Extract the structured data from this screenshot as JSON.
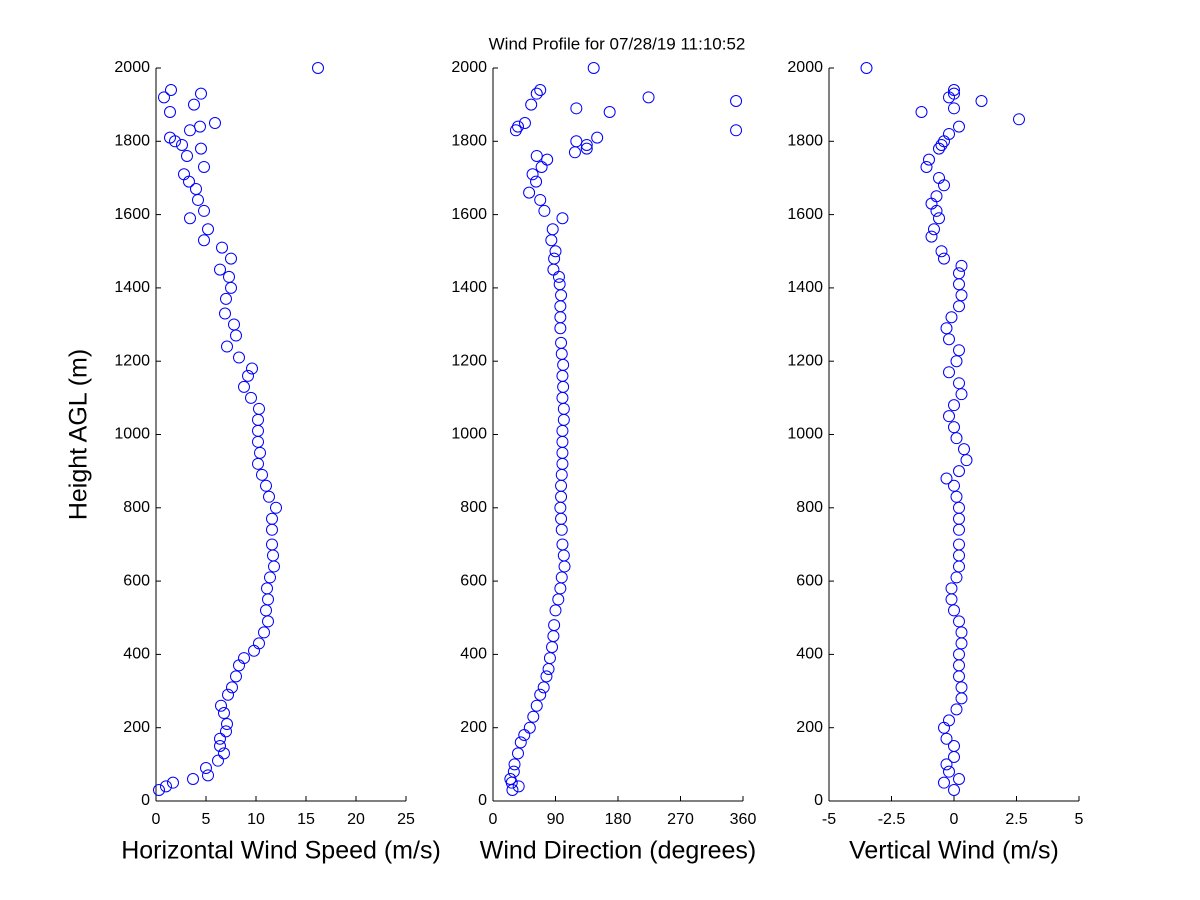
{
  "title": "Wind Profile for  07/28/19 11:10:52",
  "chart_data": [
    {
      "type": "scatter",
      "xlabel": "Horizontal Wind Speed (m/s)",
      "ylabel": "Height AGL (m)",
      "color": "#0000ff",
      "xlim": [
        0,
        25
      ],
      "xticks": [
        0,
        5,
        10,
        15,
        20,
        25
      ],
      "ylim": [
        0,
        2000
      ],
      "yticks": [
        0,
        200,
        400,
        600,
        800,
        1000,
        1200,
        1400,
        1600,
        1800,
        2000
      ],
      "x": [
        0.3,
        1,
        1.7,
        3.7,
        5.2,
        5,
        6.2,
        6.8,
        6.4,
        6.4,
        7,
        7.1,
        6.8,
        6.5,
        7.2,
        7.6,
        8,
        8.3,
        8.8,
        9.8,
        10.3,
        10.8,
        11.2,
        11,
        11.2,
        11.1,
        11.4,
        11.8,
        11.7,
        11.6,
        11.6,
        11.6,
        12,
        11.3,
        11,
        10.6,
        10.2,
        10.4,
        10.2,
        10.2,
        10.2,
        10.3,
        9.5,
        8.8,
        9.2,
        9.6,
        8.3,
        7.1,
        8,
        7.8,
        6.9,
        7,
        7.5,
        7.3,
        6.4,
        7.5,
        6.6,
        4.8,
        5.2,
        3.4,
        4.8,
        4.2,
        4,
        3.3,
        2.8,
        4.8,
        3.1,
        4.5,
        2.6,
        1.9,
        1.4,
        3.4,
        4.4,
        5.9,
        1.4,
        3.8,
        0.8,
        4.5,
        1.5,
        16.2
      ],
      "y": [
        30,
        40,
        50,
        60,
        70,
        90,
        110,
        130,
        150,
        170,
        190,
        210,
        240,
        260,
        290,
        310,
        340,
        370,
        390,
        410,
        430,
        460,
        490,
        520,
        550,
        580,
        610,
        640,
        670,
        700,
        740,
        770,
        800,
        830,
        860,
        890,
        920,
        950,
        980,
        1010,
        1040,
        1070,
        1100,
        1130,
        1160,
        1180,
        1210,
        1240,
        1270,
        1300,
        1330,
        1370,
        1400,
        1430,
        1450,
        1480,
        1510,
        1530,
        1560,
        1590,
        1610,
        1640,
        1670,
        1690,
        1710,
        1730,
        1760,
        1780,
        1790,
        1800,
        1810,
        1830,
        1840,
        1850,
        1880,
        1900,
        1920,
        1930,
        1940,
        2000
      ]
    },
    {
      "type": "scatter",
      "xlabel": "Wind Direction (degrees)",
      "color": "#0000ff",
      "xlim": [
        0,
        360
      ],
      "xticks": [
        0,
        90,
        180,
        270,
        360
      ],
      "ylim": [
        0,
        2000
      ],
      "yticks": [
        0,
        200,
        400,
        600,
        800,
        1000,
        1200,
        1400,
        1600,
        1800,
        2000
      ],
      "x": [
        28,
        37,
        27,
        25,
        30,
        31,
        36,
        40,
        45,
        53,
        58,
        63,
        68,
        73,
        77,
        80,
        82,
        85,
        87,
        88,
        90,
        94,
        97,
        99,
        103,
        102,
        100,
        99,
        98,
        97,
        98,
        98,
        99,
        100,
        100,
        100,
        100,
        102,
        102,
        100,
        101,
        100,
        101,
        99,
        98,
        97,
        97,
        97,
        98,
        96,
        95,
        87,
        88,
        90,
        84,
        86,
        100,
        74,
        68,
        52,
        62,
        57,
        70,
        78,
        63,
        118,
        135,
        135,
        120,
        150,
        33,
        350,
        36,
        46,
        168,
        120,
        55,
        350,
        224,
        63,
        68,
        145
      ],
      "y": [
        30,
        40,
        50,
        60,
        80,
        100,
        130,
        160,
        180,
        200,
        230,
        260,
        290,
        310,
        340,
        360,
        390,
        420,
        450,
        480,
        520,
        550,
        580,
        610,
        640,
        670,
        700,
        740,
        770,
        800,
        830,
        860,
        890,
        920,
        950,
        980,
        1010,
        1040,
        1070,
        1100,
        1130,
        1160,
        1190,
        1220,
        1250,
        1290,
        1320,
        1350,
        1380,
        1410,
        1430,
        1450,
        1480,
        1500,
        1530,
        1560,
        1590,
        1610,
        1640,
        1660,
        1690,
        1710,
        1730,
        1750,
        1760,
        1770,
        1780,
        1790,
        1800,
        1810,
        1830,
        1830,
        1840,
        1850,
        1880,
        1890,
        1900,
        1910,
        1920,
        1930,
        1940,
        2000
      ]
    },
    {
      "type": "scatter",
      "xlabel": "Vertical Wind (m/s)",
      "color": "#0000ff",
      "xlim": [
        -5,
        5
      ],
      "xticks": [
        -5,
        -2.5,
        0,
        2.5,
        5
      ],
      "ylim": [
        0,
        2000
      ],
      "yticks": [
        0,
        200,
        400,
        600,
        800,
        1000,
        1200,
        1400,
        1600,
        1800,
        2000
      ],
      "x": [
        0,
        -0.4,
        0.2,
        -0.2,
        -0.3,
        0,
        0,
        -0.3,
        -0.4,
        -0.2,
        0.1,
        0.3,
        0.3,
        0.2,
        0.2,
        0.2,
        0.3,
        0.3,
        0.2,
        0,
        -0.1,
        -0.1,
        0.1,
        0.2,
        0.2,
        0.2,
        0.2,
        0.2,
        0.2,
        0.1,
        0,
        -0.3,
        0.2,
        0.5,
        0.4,
        0.1,
        0,
        -0.2,
        0,
        0.3,
        0.2,
        -0.2,
        0.1,
        0.2,
        -0.2,
        -0.3,
        -0.1,
        0.2,
        0.3,
        0.2,
        0.2,
        0.3,
        -0.4,
        -0.5,
        -0.9,
        -0.8,
        -0.6,
        -0.7,
        -0.9,
        -0.7,
        -0.4,
        -0.6,
        -1.1,
        -1,
        -0.6,
        -0.5,
        -0.4,
        -0.2,
        0.2,
        2.6,
        -1.3,
        0,
        1.1,
        -0.2,
        0,
        0,
        -3.5
      ],
      "y": [
        30,
        50,
        60,
        80,
        100,
        120,
        150,
        170,
        200,
        220,
        250,
        280,
        310,
        340,
        370,
        400,
        430,
        460,
        490,
        520,
        550,
        580,
        610,
        640,
        670,
        700,
        740,
        770,
        800,
        830,
        860,
        880,
        900,
        930,
        960,
        990,
        1020,
        1050,
        1080,
        1110,
        1140,
        1170,
        1200,
        1230,
        1260,
        1290,
        1320,
        1350,
        1380,
        1410,
        1440,
        1460,
        1480,
        1500,
        1540,
        1560,
        1590,
        1610,
        1630,
        1650,
        1680,
        1700,
        1730,
        1750,
        1780,
        1790,
        1800,
        1820,
        1840,
        1860,
        1880,
        1890,
        1910,
        1920,
        1930,
        1940,
        2000
      ]
    }
  ]
}
